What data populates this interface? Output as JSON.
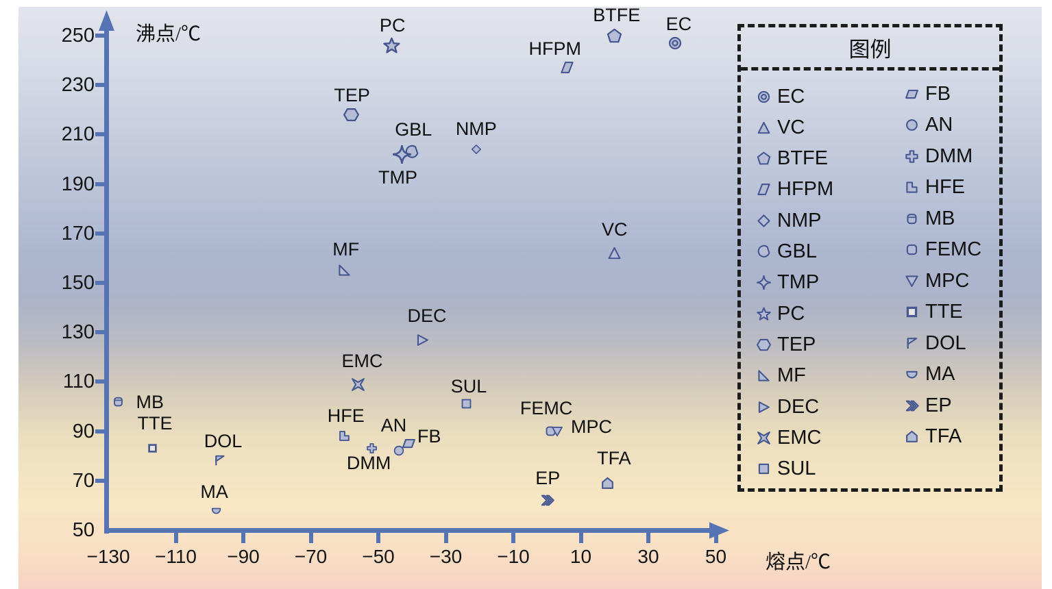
{
  "colors": {
    "axis": "#5673b3",
    "marker_stroke": "#475890",
    "marker_fill": "#b4bdd5",
    "marker_fill_light": "#e9e7e4",
    "text": "#161616",
    "legend_border": "#1c1c1c"
  },
  "chart_data": {
    "type": "scatter",
    "xlabel": "熔点/℃",
    "ylabel": "沸点/℃",
    "xlim": [
      -130,
      50
    ],
    "ylim": [
      50,
      250
    ],
    "grid": false,
    "x_ticks": [
      {
        "value": -130,
        "label": "−130",
        "tick": false
      },
      {
        "value": -110,
        "label": "−110",
        "tick": true
      },
      {
        "value": -90,
        "label": "−90",
        "tick": true
      },
      {
        "value": -70,
        "label": "−70",
        "tick": true
      },
      {
        "value": -50,
        "label": "−50",
        "tick": true
      },
      {
        "value": -30,
        "label": "−30",
        "tick": true
      },
      {
        "value": -10,
        "label": "−10",
        "tick": true
      },
      {
        "value": 10,
        "label": "10",
        "tick": true
      },
      {
        "value": 30,
        "label": "30",
        "tick": true
      },
      {
        "value": 50,
        "label": "50",
        "tick": true
      }
    ],
    "y_ticks": [
      {
        "value": 250,
        "label": "250",
        "tick": true
      },
      {
        "value": 230,
        "label": "230",
        "tick": true
      },
      {
        "value": 210,
        "label": "210",
        "tick": true
      },
      {
        "value": 190,
        "label": "190",
        "tick": true
      },
      {
        "value": 170,
        "label": "170",
        "tick": true
      },
      {
        "value": 150,
        "label": "150",
        "tick": true
      },
      {
        "value": 130,
        "label": "130",
        "tick": true
      },
      {
        "value": 110,
        "label": "110",
        "tick": true
      },
      {
        "value": 90,
        "label": "90",
        "tick": true
      },
      {
        "value": 70,
        "label": "70",
        "tick": true
      },
      {
        "value": 50,
        "label": "50",
        "tick": false
      }
    ],
    "legend": {
      "title": "图例",
      "position": "top-right",
      "columns": [
        [
          "EC",
          "VC",
          "BTFE",
          "HFPM",
          "NMP",
          "GBL",
          "TMP",
          "PC",
          "TEP",
          "MF",
          "DEC",
          "EMC",
          "SUL"
        ],
        [
          "FB",
          "AN",
          "DMM",
          "HFE",
          "MB",
          "FEMC",
          "MPC",
          "TTE",
          "DOL",
          "MA",
          "EP",
          "TFA"
        ]
      ]
    },
    "points": [
      {
        "name": "EC",
        "marker": "bullseye",
        "melting_point": 38,
        "boiling_point": 247,
        "size": 22,
        "label_offset": [
          5,
          -28
        ]
      },
      {
        "name": "BTFE",
        "marker": "pentagon",
        "melting_point": 20,
        "boiling_point": 250,
        "size": 23,
        "label_offset": [
          3,
          -30
        ]
      },
      {
        "name": "PC",
        "marker": "star5",
        "melting_point": -46,
        "boiling_point": 246,
        "size": 25,
        "label_offset": [
          1,
          -29
        ]
      },
      {
        "name": "HFPM",
        "marker": "parallelogram-skew",
        "melting_point": 6,
        "boiling_point": 237,
        "size": 21,
        "label_offset": [
          -18,
          -28
        ]
      },
      {
        "name": "TEP",
        "marker": "hexagon",
        "melting_point": -58,
        "boiling_point": 218,
        "size": 23,
        "label_offset": [
          1,
          -29
        ]
      },
      {
        "name": "NMP",
        "marker": "diamond",
        "melting_point": -21,
        "boiling_point": 204,
        "size": 16,
        "label_offset": [
          0,
          -30
        ]
      },
      {
        "name": "GBL",
        "marker": "blob",
        "melting_point": -40,
        "boiling_point": 203,
        "size": 22,
        "label_offset": [
          2,
          -33
        ]
      },
      {
        "name": "TMP",
        "marker": "sparkle",
        "melting_point": -43,
        "boiling_point": 202,
        "size": 27,
        "label_offset": [
          -6,
          34
        ]
      },
      {
        "name": "VC",
        "marker": "triangle-up",
        "melting_point": 20,
        "boiling_point": 162,
        "size": 21,
        "label_offset": [
          0,
          -35
        ]
      },
      {
        "name": "MF",
        "marker": "rtriangle",
        "melting_point": -60,
        "boiling_point": 155,
        "size": 21,
        "label_offset": [
          2,
          -31
        ]
      },
      {
        "name": "DEC",
        "marker": "triangle-right",
        "melting_point": -37,
        "boiling_point": 127,
        "size": 21,
        "label_offset": [
          7,
          -35
        ]
      },
      {
        "name": "EMC",
        "marker": "cross-x",
        "melting_point": -56,
        "boiling_point": 109,
        "size": 21,
        "label_offset": [
          6,
          -34
        ]
      },
      {
        "name": "SUL",
        "marker": "square",
        "melting_point": -24,
        "boiling_point": 101,
        "size": 19,
        "label_offset": [
          4,
          -26
        ]
      },
      {
        "name": "MB",
        "marker": "barrel",
        "melting_point": -127,
        "boiling_point": 102,
        "size": 19,
        "label_offset": [
          46,
          1
        ]
      },
      {
        "name": "TTE",
        "marker": "square-o",
        "melting_point": -117,
        "boiling_point": 83,
        "size": 17,
        "label_offset": [
          4,
          -37
        ]
      },
      {
        "name": "DOL",
        "marker": "flag",
        "melting_point": -97,
        "boiling_point": 78,
        "size": 19,
        "label_offset": [
          5,
          -29
        ]
      },
      {
        "name": "MA",
        "marker": "half-disc",
        "melting_point": -98,
        "boiling_point": 58,
        "size": 17,
        "label_offset": [
          -3,
          -27
        ]
      },
      {
        "name": "HFE",
        "marker": "lshape",
        "melting_point": -60,
        "boiling_point": 88,
        "size": 19,
        "label_offset": [
          2,
          -30
        ]
      },
      {
        "name": "DMM",
        "marker": "plus",
        "melting_point": -52,
        "boiling_point": 83,
        "size": 17,
        "label_offset": [
          -4,
          21
        ]
      },
      {
        "name": "AN",
        "marker": "circle",
        "melting_point": -44,
        "boiling_point": 82,
        "size": 18,
        "label_offset": [
          -7,
          -37
        ]
      },
      {
        "name": "FB",
        "marker": "parallelogram",
        "melting_point": -41,
        "boiling_point": 85,
        "size": 21,
        "label_offset": [
          30,
          -11
        ]
      },
      {
        "name": "FEMC",
        "marker": "rounded-square",
        "melting_point": 1,
        "boiling_point": 90,
        "size": 19,
        "label_offset": [
          -6,
          -34
        ]
      },
      {
        "name": "MPC",
        "marker": "triangle-down",
        "melting_point": 3,
        "boiling_point": 90,
        "size": 18,
        "label_offset": [
          50,
          -7
        ]
      },
      {
        "name": "EP",
        "marker": "chevrons",
        "melting_point": 0,
        "boiling_point": 62,
        "size": 21,
        "label_offset": [
          1,
          -33
        ]
      },
      {
        "name": "TFA",
        "marker": "house",
        "melting_point": 18,
        "boiling_point": 69,
        "size": 21,
        "label_offset": [
          9,
          -36
        ]
      }
    ]
  }
}
